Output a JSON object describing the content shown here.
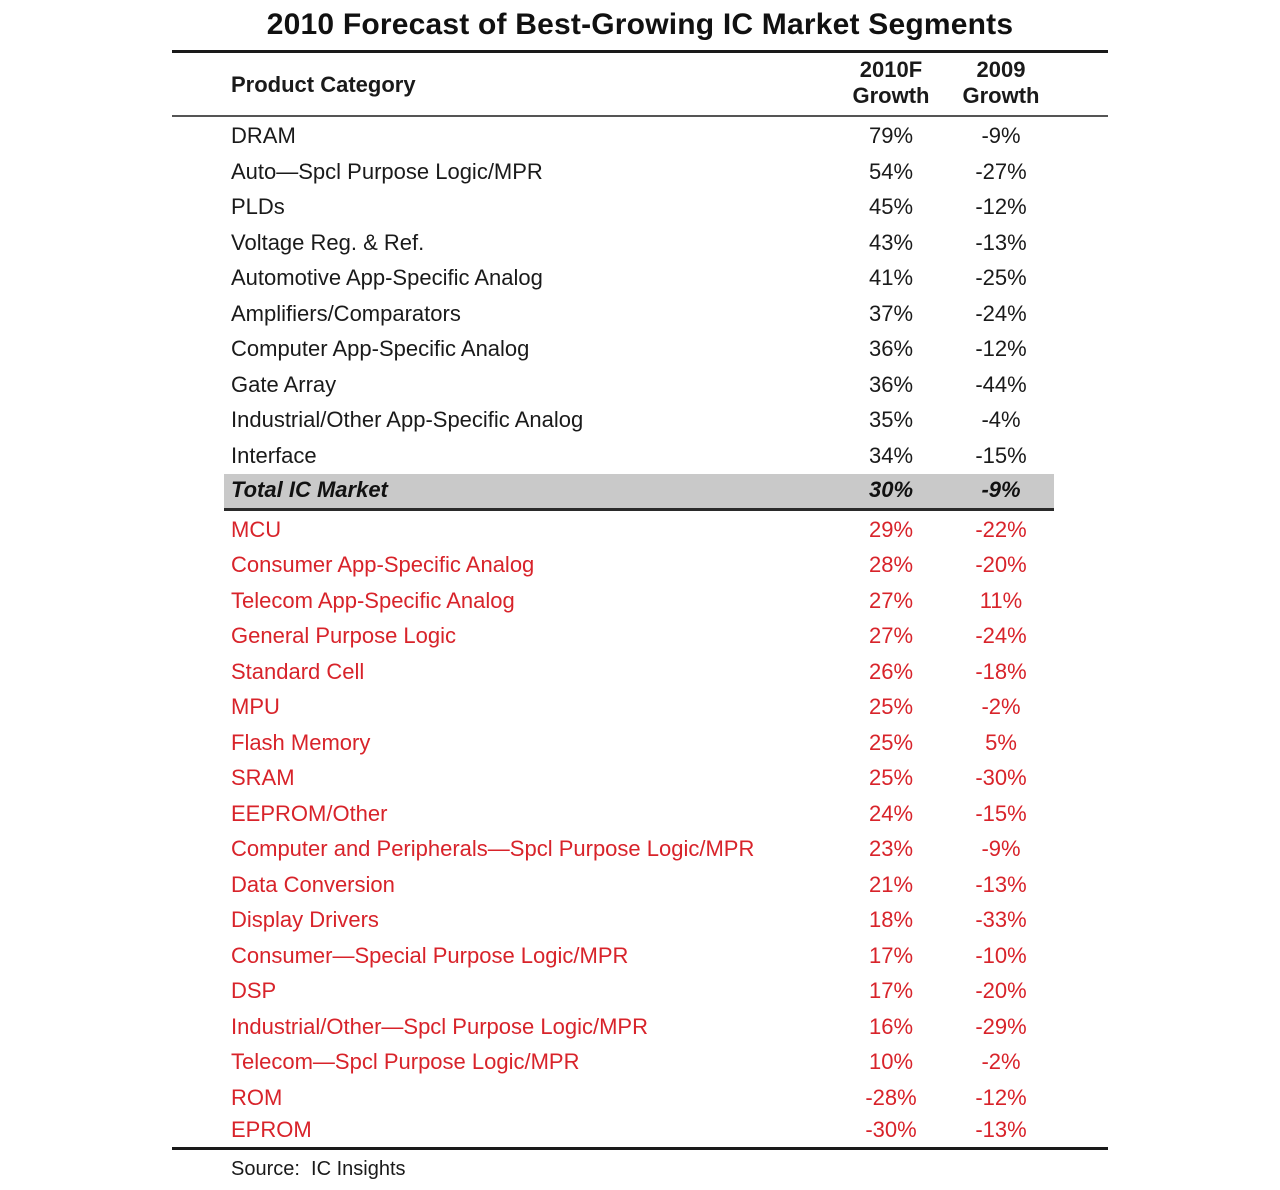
{
  "chart_data": {
    "type": "table",
    "title": "2010 Forecast of Best-Growing IC Market Segments",
    "columns": [
      "Product Category",
      "2010F Growth",
      "2009 Growth"
    ],
    "header": {
      "category": "Product Category",
      "col_2010_line1": "2010F",
      "col_2010_line2": "Growth",
      "col_2009_line1": "2009",
      "col_2009_line2": "Growth"
    },
    "rows": [
      {
        "category": "DRAM",
        "growth_2010f": "79%",
        "growth_2009": "-9%",
        "style": "dark"
      },
      {
        "category": "Auto—Spcl Purpose Logic/MPR",
        "growth_2010f": "54%",
        "growth_2009": "-27%",
        "style": "dark"
      },
      {
        "category": "PLDs",
        "growth_2010f": "45%",
        "growth_2009": "-12%",
        "style": "dark"
      },
      {
        "category": "Voltage Reg. & Ref.",
        "growth_2010f": "43%",
        "growth_2009": "-13%",
        "style": "dark"
      },
      {
        "category": "Automotive App-Specific Analog",
        "growth_2010f": "41%",
        "growth_2009": "-25%",
        "style": "dark"
      },
      {
        "category": "Amplifiers/Comparators",
        "growth_2010f": "37%",
        "growth_2009": "-24%",
        "style": "dark"
      },
      {
        "category": "Computer App-Specific Analog",
        "growth_2010f": "36%",
        "growth_2009": "-12%",
        "style": "dark"
      },
      {
        "category": "Gate Array",
        "growth_2010f": "36%",
        "growth_2009": "-44%",
        "style": "dark"
      },
      {
        "category": "Industrial/Other App-Specific Analog",
        "growth_2010f": "35%",
        "growth_2009": "-4%",
        "style": "dark"
      },
      {
        "category": "Interface",
        "growth_2010f": "34%",
        "growth_2009": "-15%",
        "style": "dark"
      },
      {
        "category": "Total IC Market",
        "growth_2010f": "30%",
        "growth_2009": "-9%",
        "style": "total"
      },
      {
        "category": "MCU",
        "growth_2010f": "29%",
        "growth_2009": "-22%",
        "style": "red"
      },
      {
        "category": "Consumer App-Specific Analog",
        "growth_2010f": "28%",
        "growth_2009": "-20%",
        "style": "red"
      },
      {
        "category": "Telecom App-Specific Analog",
        "growth_2010f": "27%",
        "growth_2009": "11%",
        "style": "red"
      },
      {
        "category": "General Purpose Logic",
        "growth_2010f": "27%",
        "growth_2009": "-24%",
        "style": "red"
      },
      {
        "category": "Standard Cell",
        "growth_2010f": "26%",
        "growth_2009": "-18%",
        "style": "red"
      },
      {
        "category": "MPU",
        "growth_2010f": "25%",
        "growth_2009": "-2%",
        "style": "red"
      },
      {
        "category": "Flash Memory",
        "growth_2010f": "25%",
        "growth_2009": "5%",
        "style": "red"
      },
      {
        "category": "SRAM",
        "growth_2010f": "25%",
        "growth_2009": "-30%",
        "style": "red"
      },
      {
        "category": "EEPROM/Other",
        "growth_2010f": "24%",
        "growth_2009": "-15%",
        "style": "red"
      },
      {
        "category": "Computer and Peripherals—Spcl Purpose Logic/MPR",
        "growth_2010f": "23%",
        "growth_2009": "-9%",
        "style": "red"
      },
      {
        "category": "Data Conversion",
        "growth_2010f": "21%",
        "growth_2009": "-13%",
        "style": "red"
      },
      {
        "category": "Display Drivers",
        "growth_2010f": "18%",
        "growth_2009": "-33%",
        "style": "red"
      },
      {
        "category": "Consumer—Special Purpose Logic/MPR",
        "growth_2010f": "17%",
        "growth_2009": "-10%",
        "style": "red"
      },
      {
        "category": "DSP",
        "growth_2010f": "17%",
        "growth_2009": "-20%",
        "style": "red"
      },
      {
        "category": "Industrial/Other—Spcl Purpose Logic/MPR",
        "growth_2010f": "16%",
        "growth_2009": "-29%",
        "style": "red"
      },
      {
        "category": "Telecom—Spcl Purpose Logic/MPR",
        "growth_2010f": "10%",
        "growth_2009": "-2%",
        "style": "red"
      },
      {
        "category": "ROM",
        "growth_2010f": "-28%",
        "growth_2009": "-12%",
        "style": "red"
      },
      {
        "category": "EPROM",
        "growth_2010f": "-30%",
        "growth_2009": "-13%",
        "style": "red"
      }
    ],
    "source": "Source:  IC Insights",
    "colors": {
      "text_dark": "#1a1a1a",
      "text_red": "#d8232a",
      "total_band": "#c9c9c9"
    }
  }
}
